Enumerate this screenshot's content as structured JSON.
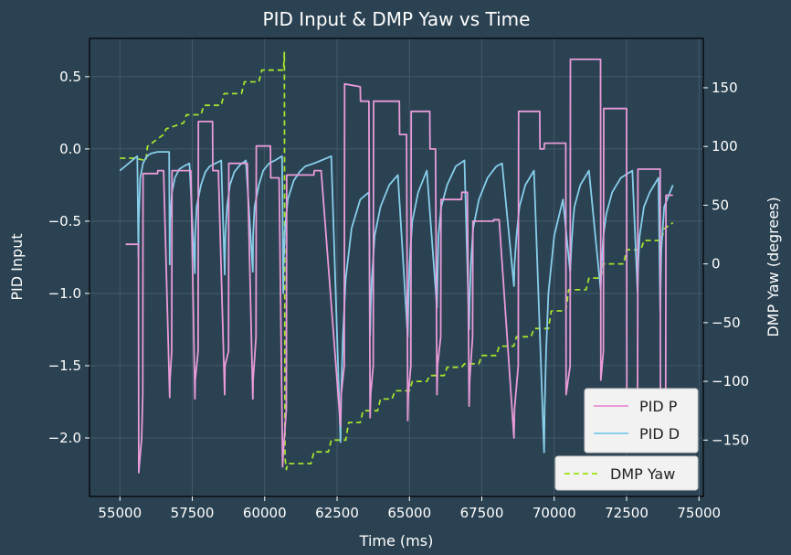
{
  "chart_data": {
    "type": "line",
    "title": "PID Input & DMP Yaw vs Time",
    "xlabel": "Time (ms)",
    "ylabel": "PID Input",
    "y2label": "DMP Yaw (degrees)",
    "xlim": [
      53950,
      75150
    ],
    "ylim": [
      -2.405,
      0.765
    ],
    "y2lim": [
      -198,
      192
    ],
    "xticks": [
      55000,
      57500,
      60000,
      62500,
      65000,
      67500,
      70000,
      72500,
      75000
    ],
    "yticks": [
      0.5,
      0.0,
      -0.5,
      -1.0,
      -1.5,
      -2.0
    ],
    "y2ticks": [
      150,
      100,
      50,
      0,
      -50,
      -100,
      -150
    ],
    "grid": true,
    "legend_placement": "bottom-right",
    "series": [
      {
        "name": "PID P",
        "color": "#e89bd8",
        "axis": "left",
        "x": [
          55200,
          55640,
          55650,
          55750,
          55790,
          55800,
          56300,
          56310,
          56510,
          56720,
          56730,
          56790,
          56800,
          57300,
          57310,
          57450,
          57590,
          57600,
          57700,
          57710,
          58200,
          58210,
          58400,
          58620,
          58630,
          58750,
          58760,
          59200,
          59210,
          59400,
          59590,
          59600,
          59700,
          59710,
          60200,
          60210,
          60500,
          60620,
          60640,
          60750,
          60760,
          61700,
          61710,
          61950,
          62620,
          62640,
          62750,
          62760,
          63300,
          63310,
          63600,
          63640,
          63660,
          63750,
          63760,
          64650,
          64660,
          64900,
          64940,
          64960,
          65050,
          65060,
          65700,
          65710,
          65900,
          65950,
          65970,
          66080,
          66090,
          66800,
          66810,
          67000,
          67060,
          67080,
          67180,
          67190,
          67900,
          67910,
          68100,
          68610,
          68630,
          68760,
          68770,
          69500,
          69510,
          69650,
          69660,
          70400,
          70410,
          70550,
          70560,
          71600,
          71610,
          71700,
          71710,
          72500,
          72510,
          72880,
          72890,
          73660,
          73670,
          73850,
          73860,
          74100
        ],
        "y": [
          -0.66,
          -0.66,
          -2.24,
          -2.0,
          -1.7,
          -0.17,
          -0.17,
          -0.15,
          -0.15,
          -1.72,
          -1.6,
          -1.4,
          -0.15,
          -0.15,
          -0.15,
          -0.15,
          -1.73,
          -1.6,
          -1.4,
          0.19,
          0.19,
          -0.15,
          -0.15,
          -1.7,
          -1.5,
          -1.4,
          -0.1,
          -0.1,
          -0.1,
          -0.1,
          -1.73,
          -1.6,
          -1.3,
          0.02,
          0.02,
          -0.2,
          -0.2,
          -2.2,
          -2.1,
          -1.8,
          -0.18,
          -0.18,
          -0.15,
          -0.15,
          -1.92,
          -1.7,
          -1.5,
          0.45,
          0.43,
          0.33,
          0.33,
          -1.86,
          -1.7,
          -1.5,
          0.33,
          0.33,
          0.1,
          0.1,
          -1.88,
          -1.7,
          -1.5,
          0.26,
          0.26,
          0.0,
          0.0,
          -1.7,
          -1.5,
          -1.3,
          -0.35,
          -0.35,
          -0.3,
          -0.3,
          -1.78,
          -1.6,
          -1.3,
          -0.5,
          -0.5,
          -0.49,
          -0.49,
          -2.0,
          -1.8,
          -1.5,
          0.26,
          0.26,
          0.0,
          0.0,
          0.04,
          0.04,
          -1.7,
          -1.5,
          0.62,
          0.62,
          -1.6,
          -1.4,
          0.28,
          0.28,
          -2.03,
          -1.8,
          -0.14,
          -0.14,
          -1.98,
          -1.7,
          -0.32,
          -0.32
        ]
      },
      {
        "name": "PID D",
        "color": "#87ceeb",
        "axis": "left",
        "x": [
          55000,
          55300,
          55600,
          55640,
          55650,
          55700,
          55800,
          55900,
          56000,
          56100,
          56300,
          56500,
          56700,
          56720,
          56730,
          56800,
          56900,
          57050,
          57200,
          57400,
          57590,
          57600,
          57650,
          57800,
          57950,
          58100,
          58300,
          58500,
          58620,
          58640,
          58700,
          58800,
          58950,
          59150,
          59350,
          59590,
          59600,
          59650,
          59800,
          59950,
          60150,
          60350,
          60600,
          60640,
          60650,
          60700,
          60800,
          61000,
          61200,
          61400,
          61700,
          61950,
          62300,
          62620,
          62640,
          62700,
          62800,
          63000,
          63300,
          63600,
          63640,
          63660,
          63700,
          63800,
          64000,
          64300,
          64600,
          64940,
          64960,
          65000,
          65100,
          65300,
          65600,
          65950,
          65970,
          66000,
          66100,
          66300,
          66600,
          66900,
          67060,
          67080,
          67120,
          67200,
          67400,
          67700,
          68000,
          68200,
          68610,
          68630,
          68700,
          68800,
          69000,
          69300,
          69650,
          69670,
          69720,
          69800,
          70000,
          70300,
          70550,
          70600,
          70650,
          70700,
          70900,
          71200,
          71600,
          71640,
          71700,
          71800,
          72000,
          72300,
          72700,
          72880,
          72900,
          72950,
          73100,
          73300,
          73600,
          73660,
          73680,
          73700,
          73800,
          74000,
          74100
        ],
        "y": [
          -0.15,
          -0.1,
          -0.05,
          -0.75,
          -0.5,
          -0.2,
          -0.1,
          -0.06,
          -0.04,
          -0.03,
          -0.02,
          -0.02,
          -0.02,
          -0.8,
          -0.5,
          -0.3,
          -0.2,
          -0.14,
          -0.12,
          -0.1,
          -0.86,
          -0.6,
          -0.4,
          -0.25,
          -0.16,
          -0.12,
          -0.1,
          -0.08,
          -0.87,
          -0.6,
          -0.4,
          -0.25,
          -0.16,
          -0.11,
          -0.08,
          -0.85,
          -0.6,
          -0.4,
          -0.25,
          -0.15,
          -0.1,
          -0.08,
          -0.05,
          -1.0,
          -0.8,
          -0.55,
          -0.35,
          -0.22,
          -0.16,
          -0.12,
          -0.1,
          -0.08,
          -0.05,
          -2.03,
          -1.7,
          -1.3,
          -0.9,
          -0.55,
          -0.35,
          -0.3,
          -1.29,
          -1.1,
          -0.9,
          -0.6,
          -0.4,
          -0.25,
          -0.18,
          -1.3,
          -1.1,
          -0.8,
          -0.5,
          -0.3,
          -0.15,
          -1.1,
          -0.9,
          -0.6,
          -0.4,
          -0.25,
          -0.12,
          -0.08,
          -1.25,
          -1.05,
          -0.8,
          -0.55,
          -0.35,
          -0.2,
          -0.12,
          -0.1,
          -0.95,
          -0.8,
          -0.6,
          -0.4,
          -0.25,
          -0.15,
          -2.1,
          -1.8,
          -1.4,
          -1.0,
          -0.6,
          -0.35,
          -0.85,
          -0.65,
          -0.5,
          -0.4,
          -0.25,
          -0.15,
          -0.97,
          -0.8,
          -0.6,
          -0.45,
          -0.3,
          -0.2,
          -0.15,
          -0.99,
          -0.8,
          -0.6,
          -0.4,
          -0.3,
          -0.2,
          -1.12,
          -0.9,
          -0.7,
          -0.4,
          -0.3,
          -0.25
        ]
      },
      {
        "name": "DMP Yaw",
        "color": "#a6e22e",
        "axis": "right",
        "dashed": true,
        "x": [
          55000,
          55500,
          55900,
          55950,
          56500,
          56600,
          57200,
          57300,
          57800,
          57900,
          58500,
          58600,
          59200,
          59300,
          59800,
          59900,
          60650,
          60680,
          60700,
          60750,
          60800,
          61600,
          61700,
          62200,
          62300,
          62800,
          62900,
          63300,
          63400,
          63900,
          64000,
          64400,
          64500,
          65000,
          65100,
          65600,
          65700,
          66200,
          66300,
          66800,
          66900,
          67400,
          67500,
          68000,
          68100,
          68600,
          68700,
          69200,
          69300,
          69800,
          69900,
          70400,
          70500,
          71100,
          71200,
          71600,
          71700,
          72400,
          72500,
          73000,
          73100,
          73700,
          73800,
          74100
        ],
        "y": [
          90,
          90,
          88,
          100,
          110,
          115,
          120,
          127,
          127,
          135,
          135,
          145,
          145,
          155,
          155,
          165,
          165,
          180,
          -165,
          -175,
          -170,
          -170,
          -160,
          -160,
          -150,
          -150,
          -135,
          -135,
          -125,
          -125,
          -115,
          -115,
          -108,
          -108,
          -100,
          -100,
          -95,
          -95,
          -88,
          -88,
          -85,
          -85,
          -78,
          -78,
          -70,
          -70,
          -62,
          -62,
          -55,
          -55,
          -40,
          -40,
          -22,
          -22,
          -12,
          -12,
          0,
          0,
          12,
          12,
          20,
          20,
          30,
          35
        ]
      }
    ]
  }
}
